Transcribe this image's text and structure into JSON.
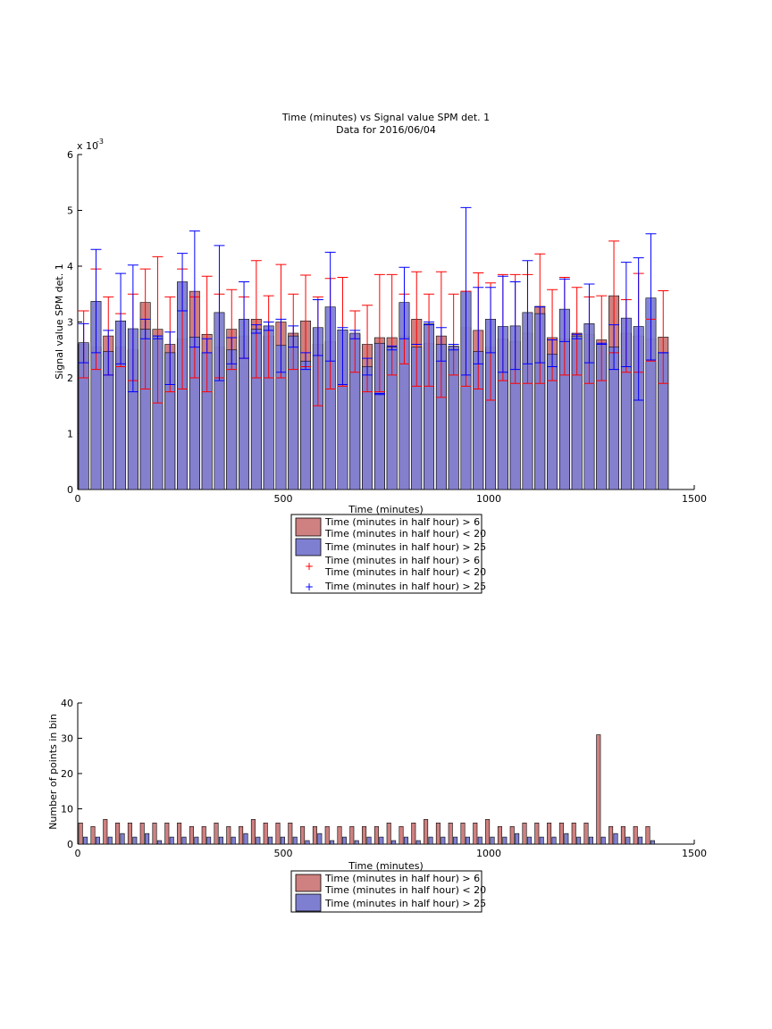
{
  "figure_title": {
    "line1": "Time (minutes) vs Signal value SPM det. 1",
    "line2": "Data for 2016/06/04"
  },
  "colors": {
    "red_fill": "#c77b7b",
    "red_bar": "#cf8080",
    "red_err": "#ff0000",
    "blue_fill": "#7f7fd1",
    "blue_err": "#0000ff",
    "hist_red": "#cf8080",
    "hist_blue": "#7f7fd1"
  },
  "chart_data": [
    {
      "type": "bar",
      "title": "Time (minutes) vs Signal value SPM det. 1",
      "subtitle": "Data for 2016/06/04",
      "xlabel": "Time (minutes)",
      "ylabel": "Signal value SPM det. 1",
      "y_exponent_label": "x 10",
      "y_exponent_power": "-3",
      "xlim": [
        0,
        1500
      ],
      "ylim": [
        0,
        6
      ],
      "xticks": [
        "0",
        "500",
        "1000",
        "1500"
      ],
      "yticks": [
        "0",
        "1",
        "2",
        "3",
        "4",
        "5",
        "6"
      ],
      "legend_position": "below",
      "legend": [
        {
          "kind": "patch",
          "color": "red",
          "lines": [
            "Time (minutes in half hour) > 6",
            "Time (minutes in half hour) < 20"
          ]
        },
        {
          "kind": "patch",
          "color": "blue",
          "lines": [
            "Time (minutes in half hour) > 25"
          ]
        },
        {
          "kind": "plus",
          "color": "red",
          "lines": [
            "Time (minutes in half hour) > 6",
            "Time (minutes in half hour) < 20"
          ]
        },
        {
          "kind": "plus",
          "color": "blue",
          "lines": [
            "Time (minutes in half hour) > 25"
          ]
        }
      ],
      "x": [
        0,
        30,
        60,
        90,
        120,
        150,
        180,
        210,
        240,
        270,
        300,
        330,
        360,
        390,
        420,
        450,
        480,
        510,
        540,
        570,
        600,
        630,
        660,
        690,
        720,
        750,
        780,
        810,
        840,
        870,
        900,
        930,
        960,
        990,
        1020,
        1050,
        1080,
        1110,
        1140,
        1170,
        1200,
        1230,
        1260,
        1290,
        1320,
        1350,
        1380,
        1410
      ],
      "series": [
        {
          "name": "Time (minutes in half hour) > 6, < 20",
          "values": [
            2.6,
            2.55,
            2.75,
            2.55,
            2.5,
            3.35,
            2.87,
            2.6,
            2.7,
            3.55,
            2.78,
            2.55,
            2.87,
            2.75,
            3.05,
            2.75,
            3.0,
            2.8,
            3.02,
            2.6,
            2.65,
            2.82,
            2.78,
            2.6,
            2.72,
            2.72,
            2.75,
            3.05,
            2.62,
            2.75,
            2.55,
            2.9,
            2.85,
            2.55,
            2.7,
            2.65,
            2.8,
            3.28,
            2.72,
            2.7,
            2.8,
            2.78,
            2.68,
            3.47,
            2.8,
            2.75,
            2.7,
            2.73
          ],
          "err_low": [
            2.0,
            2.15,
            2.05,
            2.2,
            1.95,
            1.8,
            1.55,
            1.75,
            1.8,
            2.0,
            1.75,
            2.0,
            2.15,
            2.35,
            2.0,
            2.0,
            2.0,
            2.15,
            2.2,
            1.5,
            1.8,
            1.85,
            2.1,
            1.75,
            1.75,
            2.05,
            2.25,
            1.85,
            1.85,
            1.65,
            2.05,
            1.85,
            1.8,
            1.6,
            1.95,
            1.9,
            1.9,
            1.9,
            1.95,
            2.05,
            2.05,
            1.9,
            1.95,
            2.45,
            2.1,
            2.1,
            2.3,
            1.9
          ],
          "err_high": [
            3.2,
            3.95,
            3.45,
            3.15,
            3.5,
            3.95,
            4.17,
            3.45,
            3.95,
            3.45,
            3.82,
            3.5,
            3.58,
            3.45,
            4.1,
            3.47,
            4.03,
            3.5,
            3.84,
            3.45,
            3.78,
            3.8,
            3.2,
            3.3,
            3.85,
            3.85,
            3.5,
            3.9,
            3.5,
            3.9,
            3.5,
            3.55,
            3.88,
            3.7,
            3.85,
            3.85,
            3.85,
            4.22,
            3.58,
            3.8,
            3.62,
            3.45,
            3.47,
            4.45,
            3.4,
            3.87,
            3.05,
            3.56
          ]
        },
        {
          "name": "Time (minutes in half hour) > 25",
          "values": [
            2.63,
            3.37,
            2.47,
            3.02,
            2.88,
            2.87,
            2.75,
            2.45,
            3.72,
            2.73,
            2.45,
            3.17,
            2.5,
            3.05,
            2.87,
            2.93,
            2.58,
            2.75,
            2.3,
            2.9,
            3.27,
            2.86,
            2.8,
            2.2,
            2.62,
            2.55,
            3.35,
            2.55,
            2.97,
            2.6,
            2.57,
            3.55,
            2.47,
            3.05,
            2.92,
            2.93,
            3.17,
            3.15,
            2.42,
            3.23,
            2.75,
            2.97,
            2.6,
            2.55,
            3.07,
            2.92,
            3.43,
            2.45
          ],
          "err_low": [
            2.27,
            2.45,
            2.05,
            2.25,
            1.75,
            2.7,
            2.7,
            1.88,
            3.2,
            2.55,
            2.45,
            1.95,
            2.25,
            2.35,
            2.8,
            2.85,
            2.1,
            2.55,
            2.15,
            2.4,
            2.3,
            1.88,
            2.7,
            2.05,
            1.7,
            2.5,
            2.7,
            2.6,
            2.95,
            2.3,
            2.5,
            2.05,
            2.25,
            2.45,
            2.1,
            2.15,
            2.25,
            2.27,
            2.2,
            2.65,
            2.7,
            2.27,
            2.6,
            2.15,
            2.2,
            1.6,
            2.32,
            2.45
          ],
          "err_high": [
            2.97,
            4.3,
            2.85,
            3.87,
            4.02,
            3.05,
            2.75,
            2.82,
            4.23,
            4.63,
            2.7,
            4.37,
            2.72,
            3.72,
            2.95,
            3.0,
            3.05,
            2.93,
            2.45,
            3.4,
            4.25,
            2.9,
            2.85,
            2.35,
            1.72,
            2.57,
            3.98,
            2.6,
            3.0,
            2.9,
            2.6,
            5.05,
            3.62,
            3.62,
            3.82,
            3.72,
            4.1,
            3.27,
            2.68,
            3.77,
            2.78,
            3.68,
            2.62,
            2.95,
            4.07,
            4.15,
            4.58,
            2.45
          ]
        }
      ]
    },
    {
      "type": "bar",
      "title": "",
      "xlabel": "Time (minutes)",
      "ylabel": "Number of points in bin",
      "xlim": [
        0,
        1500
      ],
      "ylim": [
        0,
        40
      ],
      "xticks": [
        "0",
        "500",
        "1000",
        "1500"
      ],
      "yticks": [
        "0",
        "10",
        "20",
        "30",
        "40"
      ],
      "legend_position": "below",
      "legend": [
        {
          "kind": "patch",
          "color": "red",
          "lines": [
            "Time (minutes in half hour) > 6",
            "Time (minutes in half hour) < 20"
          ]
        },
        {
          "kind": "patch",
          "color": "blue",
          "lines": [
            "Time (minutes in half hour) > 25"
          ]
        }
      ],
      "x": [
        0,
        30,
        60,
        90,
        120,
        150,
        180,
        210,
        240,
        270,
        300,
        330,
        360,
        390,
        420,
        450,
        480,
        510,
        540,
        570,
        600,
        630,
        660,
        690,
        720,
        750,
        780,
        810,
        840,
        870,
        900,
        930,
        960,
        990,
        1020,
        1050,
        1080,
        1110,
        1140,
        1170,
        1200,
        1230,
        1260,
        1290,
        1320,
        1350,
        1380,
        1410
      ],
      "series": [
        {
          "name": "Time (minutes in half hour) > 6, < 20",
          "values": [
            6,
            5,
            7,
            6,
            6,
            6,
            6,
            6,
            6,
            5,
            5,
            6,
            5,
            5,
            7,
            6,
            6,
            6,
            5,
            5,
            5,
            5,
            5,
            5,
            5,
            6,
            5,
            6,
            7,
            6,
            6,
            6,
            6,
            7,
            5,
            5,
            6,
            6,
            6,
            6,
            6,
            6,
            31,
            5,
            5,
            5,
            5,
            0
          ],
          "offsets": []
        },
        {
          "name": "Time (minutes in half hour) > 25",
          "values": [
            2,
            2,
            2,
            3,
            2,
            3,
            1,
            2,
            2,
            2,
            2,
            2,
            2,
            3,
            2,
            2,
            2,
            2,
            1,
            3,
            1,
            2,
            1,
            2,
            2,
            1,
            2,
            1,
            2,
            2,
            2,
            2,
            2,
            2,
            2,
            3,
            2,
            2,
            2,
            3,
            2,
            2,
            2,
            3,
            2,
            2,
            1,
            0
          ]
        }
      ]
    }
  ]
}
